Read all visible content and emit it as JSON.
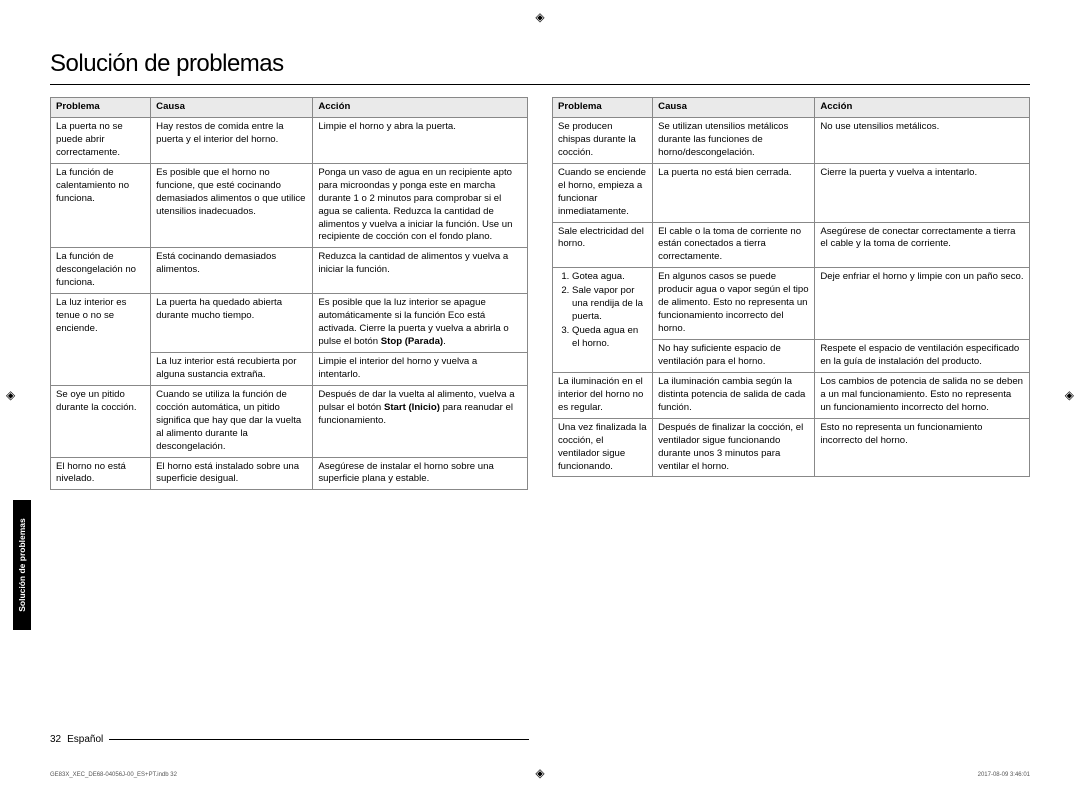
{
  "title": "Solución de problemas",
  "sideTab": "Solución de problemas",
  "headers": {
    "problema": "Problema",
    "causa": "Causa",
    "accion": "Acción"
  },
  "leftRows": [
    {
      "problema": "La puerta no se puede abrir correctamente.",
      "causa": "Hay restos de comida entre la puerta y el interior del horno.",
      "accion": "Limpie el horno y abra la puerta."
    },
    {
      "problema": "La función de calentamiento no funciona.",
      "causa": "Es posible que el horno no funcione, que esté cocinando demasiados alimentos o que utilice utensilios inadecuados.",
      "accion": "Ponga un vaso de agua en un recipiente apto para microondas y ponga este en marcha durante 1 o 2 minutos para comprobar si el agua se calienta. Reduzca la cantidad de alimentos y vuelva a iniciar la función. Use un recipiente de cocción con el fondo plano."
    },
    {
      "problema": "La función de descongelación no funciona.",
      "causa": "Está cocinando demasiados alimentos.",
      "accion": "Reduzca la cantidad de alimentos y vuelva a iniciar la función."
    },
    {
      "problema": "La luz interior es tenue o no se enciende.",
      "causa": "La puerta ha quedado abierta durante mucho tiempo.",
      "accion_html": "Es posible que la luz interior se apague automáticamente si la función Eco está activada. Cierre la puerta y vuelva a abrirla o pulse el botón <b>Stop (Parada)</b>."
    },
    {
      "problema": "",
      "causa": "La luz interior está recubierta por alguna sustancia extraña.",
      "accion": "Limpie el interior del horno y vuelva a intentarlo."
    },
    {
      "problema": "Se oye un pitido durante la cocción.",
      "causa": "Cuando se utiliza la función de cocción automática, un pitido significa que hay que dar la vuelta al alimento durante la descongelación.",
      "accion_html": "Después de dar la vuelta al alimento, vuelva a pulsar el botón <b>Start (Inicio)</b> para reanudar el funcionamiento."
    },
    {
      "problema": "El horno no está nivelado.",
      "causa": "El horno está instalado sobre una superficie desigual.",
      "accion": "Asegúrese de instalar el horno sobre una superficie plana y estable."
    }
  ],
  "rightRows": [
    {
      "problema": "Se producen chispas durante la cocción.",
      "causa": "Se utilizan utensilios metálicos durante las funciones de horno/descongelación.",
      "accion": "No use utensilios metálicos."
    },
    {
      "problema": "Cuando se enciende el horno, empieza a funcionar inmediatamente.",
      "causa": "La puerta no está bien cerrada.",
      "accion": "Cierre la puerta y vuelva a intentarlo."
    },
    {
      "problema": "Sale electricidad del horno.",
      "causa": "El cable o la toma de corriente no están conectados a tierra correctamente.",
      "accion": "Asegúrese de conectar correctamente a tierra el cable y la toma de corriente."
    },
    {
      "problema_html": "<ol class='inline-list'><li>Gotea agua.</li><li>Sale vapor por una rendija de la puerta.</li><li>Queda agua en el horno.</li></ol>",
      "rowspan_prob": 2,
      "causa": "En algunos casos se puede producir agua o vapor según el tipo de alimento. Esto no representa un funcionamiento incorrecto del horno.",
      "accion": "Deje enfriar el horno y limpie con un paño seco."
    },
    {
      "causa": "No hay suficiente espacio de ventilación para el horno.",
      "accion": "Respete el espacio de ventilación especificado en la guía de instalación del producto."
    },
    {
      "problema": "La iluminación en el interior del horno no es regular.",
      "causa": "La iluminación cambia según la distinta potencia de salida de cada función.",
      "accion": "Los cambios de potencia de salida no se deben a un mal funcionamiento. Esto no representa un funcionamiento incorrecto del horno."
    },
    {
      "problema": "Una vez finalizada la cocción, el ventilador sigue funcionando.",
      "causa": "Después de finalizar la cocción, el ventilador sigue funcionando durante unos 3 minutos para ventilar el horno.",
      "accion": "Esto no representa un funcionamiento incorrecto del horno."
    }
  ],
  "pageNum": "32",
  "lang": "Español",
  "tinyLeft": "GE83X_XEC_DE68-04056J-00_ES+PT.indb   32",
  "tinyRight": "2017-08-09   3:46:01",
  "colors": {
    "headerBg": "#eaeaea",
    "border": "#888888",
    "tabBg": "#000000",
    "tabText": "#ffffff"
  }
}
